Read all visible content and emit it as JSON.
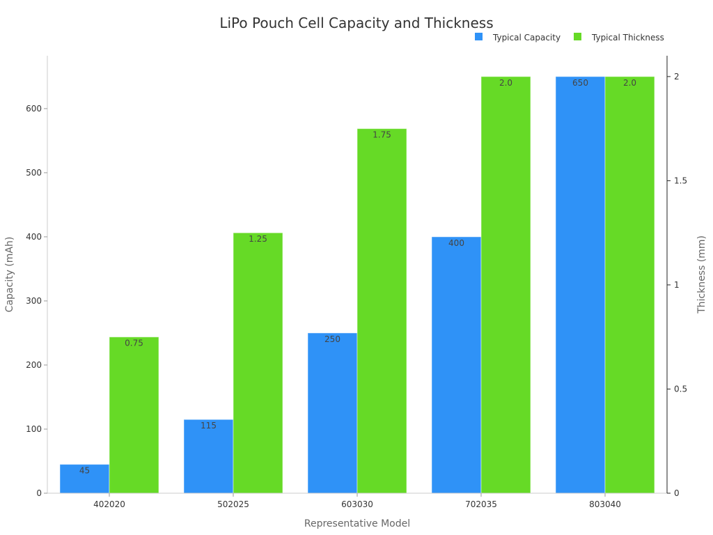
{
  "chart_data": {
    "type": "bar",
    "title": "LiPo Pouch Cell Capacity and Thickness",
    "xlabel": "Representative Model",
    "ylabel": "Capacity (mAh)",
    "y2label": "Thickness (mm)",
    "categories": [
      "402020",
      "502025",
      "603030",
      "702035",
      "803040"
    ],
    "series": [
      {
        "name": "Typical Capacity",
        "axis": "left",
        "color": "#2f92f7",
        "values": [
          45,
          115,
          250,
          400,
          650
        ],
        "labels": [
          "45",
          "115",
          "250",
          "400",
          "650"
        ]
      },
      {
        "name": "Typical Thickness",
        "axis": "right",
        "color": "#66da26",
        "values": [
          0.75,
          1.25,
          1.75,
          2.0,
          2.0
        ],
        "labels": [
          "0.75",
          "1.25",
          "1.75",
          "2.0",
          "2.0"
        ]
      }
    ],
    "ylim": [
      0,
      682.5
    ],
    "y2lim": [
      0,
      2.1
    ],
    "yticks": [
      "0",
      "100",
      "200",
      "300",
      "400",
      "500",
      "600"
    ],
    "ytick_values": [
      0,
      100,
      200,
      300,
      400,
      500,
      600
    ],
    "y2ticks": [
      "0",
      "0.5",
      "1",
      "1.5",
      "2"
    ],
    "y2tick_values": [
      0,
      0.5,
      1,
      1.5,
      2
    ],
    "grid": false,
    "legend": "top-right"
  }
}
